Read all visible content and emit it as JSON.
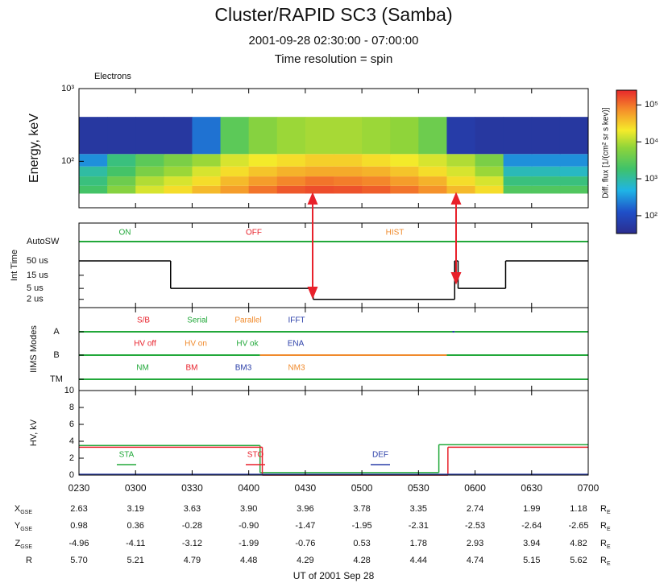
{
  "figure": {
    "title": "Cluster/RAPID SC3 (Samba)",
    "subtitle": "2001-09-28 02:30:00 - 07:00:00",
    "annotation": "Time resolution = spin",
    "xlabel": "UT of 2001 Sep 28",
    "xlim": [
      2.5,
      7
    ],
    "xticks": [
      {
        "value": 2.5,
        "label": "0230"
      },
      {
        "value": 3,
        "label": "0300"
      },
      {
        "value": 3.5,
        "label": "0330"
      },
      {
        "value": 4,
        "label": "0400"
      },
      {
        "value": 4.5,
        "label": "0430"
      },
      {
        "value": 5,
        "label": "0500"
      },
      {
        "value": 5.5,
        "label": "0530"
      },
      {
        "value": 6,
        "label": "0600"
      },
      {
        "value": 6.5,
        "label": "0630"
      },
      {
        "value": 7,
        "label": "0700"
      }
    ]
  },
  "chart_data": [
    {
      "type": "spectrogram",
      "label": "Electrons",
      "ylabel": "Energy, keV",
      "ylog": true,
      "ylim": [
        23,
        1000
      ],
      "yticks": [
        {
          "value": 100,
          "label": "10²"
        },
        {
          "value": 1000,
          "label": "10³"
        }
      ],
      "x": [
        2.5,
        2.75,
        3,
        3.25,
        3.5,
        3.75,
        4,
        4.25,
        4.5,
        4.75,
        5,
        5.25,
        5.5,
        5.75,
        6,
        6.25,
        6.5,
        6.75,
        7
      ],
      "energy_bins": [
        36,
        46,
        62,
        85,
        126,
        408
      ],
      "values": [
        [
          2000,
          6000,
          15000,
          25000,
          40000,
          60000,
          100000,
          140000,
          160000,
          150000,
          130000,
          100000,
          70000,
          40000,
          25000,
          2500,
          2500,
          2500
        ],
        [
          1500,
          4000,
          10000,
          15000,
          25000,
          40000,
          60000,
          80000,
          100000,
          90000,
          80000,
          60000,
          45000,
          25000,
          15000,
          1500,
          1500,
          1500
        ],
        [
          1000,
          2000,
          5000,
          8000,
          15000,
          25000,
          35000,
          45000,
          50000,
          50000,
          45000,
          35000,
          25000,
          15000,
          8000,
          800,
          800,
          700
        ],
        [
          300,
          1500,
          3000,
          5000,
          8000,
          15000,
          20000,
          25000,
          30000,
          30000,
          25000,
          20000,
          15000,
          10000,
          5000,
          300,
          300,
          300
        ],
        [
          50,
          50,
          50,
          50,
          200,
          3000,
          6000,
          8000,
          9000,
          9000,
          8000,
          7000,
          4000,
          60,
          50,
          50,
          50,
          50
        ]
      ],
      "colormap": "jet",
      "zlim": [
        33,
        250000
      ],
      "zlog": true,
      "zticks": [
        {
          "value": 100,
          "label": "10²"
        },
        {
          "value": 1000,
          "label": "10³"
        },
        {
          "value": 10000,
          "label": "10⁴"
        },
        {
          "value": 100000,
          "label": "10⁵"
        }
      ],
      "zlabel": "Diff. flux [1/(cm² sr s kev)]"
    },
    {
      "type": "step",
      "ylabel": "Int Time",
      "ylog": true,
      "ylim": [
        1,
        50
      ],
      "yticks": [
        {
          "value": 2,
          "label": "2 us"
        },
        {
          "value": 5,
          "label": "5 us"
        },
        {
          "value": 15,
          "label": "15 us"
        },
        {
          "value": 50,
          "label": "50 us"
        }
      ],
      "series": [
        {
          "x": [
            2.5,
            3.31,
            4.57,
            5.82,
            5.85,
            6.27
          ],
          "values": [
            50,
            5,
            2,
            50,
            5,
            50
          ],
          "color": "#000000"
        }
      ],
      "autosw": {
        "label": "AutoSW",
        "states": [
          {
            "name": "ON",
            "color": "#22a83a"
          },
          {
            "name": "OFF",
            "color": "#e8212b"
          },
          {
            "name": "HIST",
            "color": "#f08a2c"
          }
        ],
        "segments": [
          {
            "start": 2.5,
            "end": 7,
            "state": 0
          }
        ]
      }
    },
    {
      "type": "modes",
      "ylabel": "IIMS Modes",
      "rows": [
        {
          "label": "A",
          "states": [
            {
              "name": "S/B",
              "color": "#e8212b"
            },
            {
              "name": "Serial",
              "color": "#22a83a"
            },
            {
              "name": "Parallel",
              "color": "#f08a2c"
            },
            {
              "name": "IFFT",
              "color": "#2a3ea8"
            }
          ],
          "segments": [
            {
              "start": 2.5,
              "end": 5.8,
              "state": 1
            },
            {
              "start": 5.8,
              "end": 5.82,
              "state": 3
            },
            {
              "start": 5.82,
              "end": 7,
              "state": 1
            }
          ]
        },
        {
          "label": "B",
          "states": [
            {
              "name": "HV off",
              "color": "#e8212b"
            },
            {
              "name": "HV on",
              "color": "#f08a2c"
            },
            {
              "name": "HV ok",
              "color": "#22a83a"
            },
            {
              "name": "ENA",
              "color": "#2a3ea8"
            }
          ],
          "segments": [
            {
              "start": 2.5,
              "end": 4.1,
              "state": 2
            },
            {
              "start": 4.1,
              "end": 5.75,
              "state": 1
            },
            {
              "start": 5.75,
              "end": 7,
              "state": 2
            }
          ]
        },
        {
          "label": "TM",
          "states": [
            {
              "name": "NM",
              "color": "#22a83a"
            },
            {
              "name": "BM",
              "color": "#e8212b"
            },
            {
              "name": "BM3",
              "color": "#2a3ea8"
            },
            {
              "name": "NM3",
              "color": "#f08a2c"
            }
          ],
          "segments": [
            {
              "start": 2.5,
              "end": 7,
              "state": 0
            }
          ]
        }
      ]
    },
    {
      "type": "step",
      "ylabel": "HV, kV",
      "ylim": [
        0,
        10
      ],
      "yticks": [
        0,
        2,
        4,
        6,
        8,
        10
      ],
      "series": [
        {
          "name": "STA",
          "color": "#22a83a",
          "x": [
            2.5,
            4.1,
            5.68
          ],
          "values": [
            3.5,
            0.3,
            3.6
          ]
        },
        {
          "name": "STO",
          "color": "#e8212b",
          "x": [
            2.5,
            4.12,
            5.76
          ],
          "values": [
            3.3,
            0,
            3.3
          ]
        },
        {
          "name": "DEF",
          "color": "#2a3ea8",
          "x": [
            2.5
          ],
          "values": [
            0.1
          ]
        }
      ]
    }
  ],
  "ephemeris": {
    "unit": {
      "label": "R",
      "sub": "E"
    },
    "rows": [
      {
        "label": "X",
        "sub": "GSE",
        "cells": [
          "2.63",
          "3.19",
          "3.63",
          "3.90",
          "3.96",
          "3.78",
          "3.35",
          "2.74",
          "1.99",
          "1.18"
        ]
      },
      {
        "label": "Y",
        "sub": "GSE",
        "cells": [
          "0.98",
          "0.36",
          "-0.28",
          "-0.90",
          "-1.47",
          "-1.95",
          "-2.31",
          "-2.53",
          "-2.64",
          "-2.65"
        ]
      },
      {
        "label": "Z",
        "sub": "GSE",
        "cells": [
          "-4.96",
          "-4.11",
          "-3.12",
          "-1.99",
          "-0.76",
          "0.53",
          "1.78",
          "2.93",
          "3.94",
          "4.82"
        ]
      },
      {
        "label": "R",
        "cells": [
          "5.70",
          "5.21",
          "4.79",
          "4.48",
          "4.29",
          "4.28",
          "4.44",
          "4.74",
          "5.15",
          "5.62"
        ]
      }
    ]
  }
}
